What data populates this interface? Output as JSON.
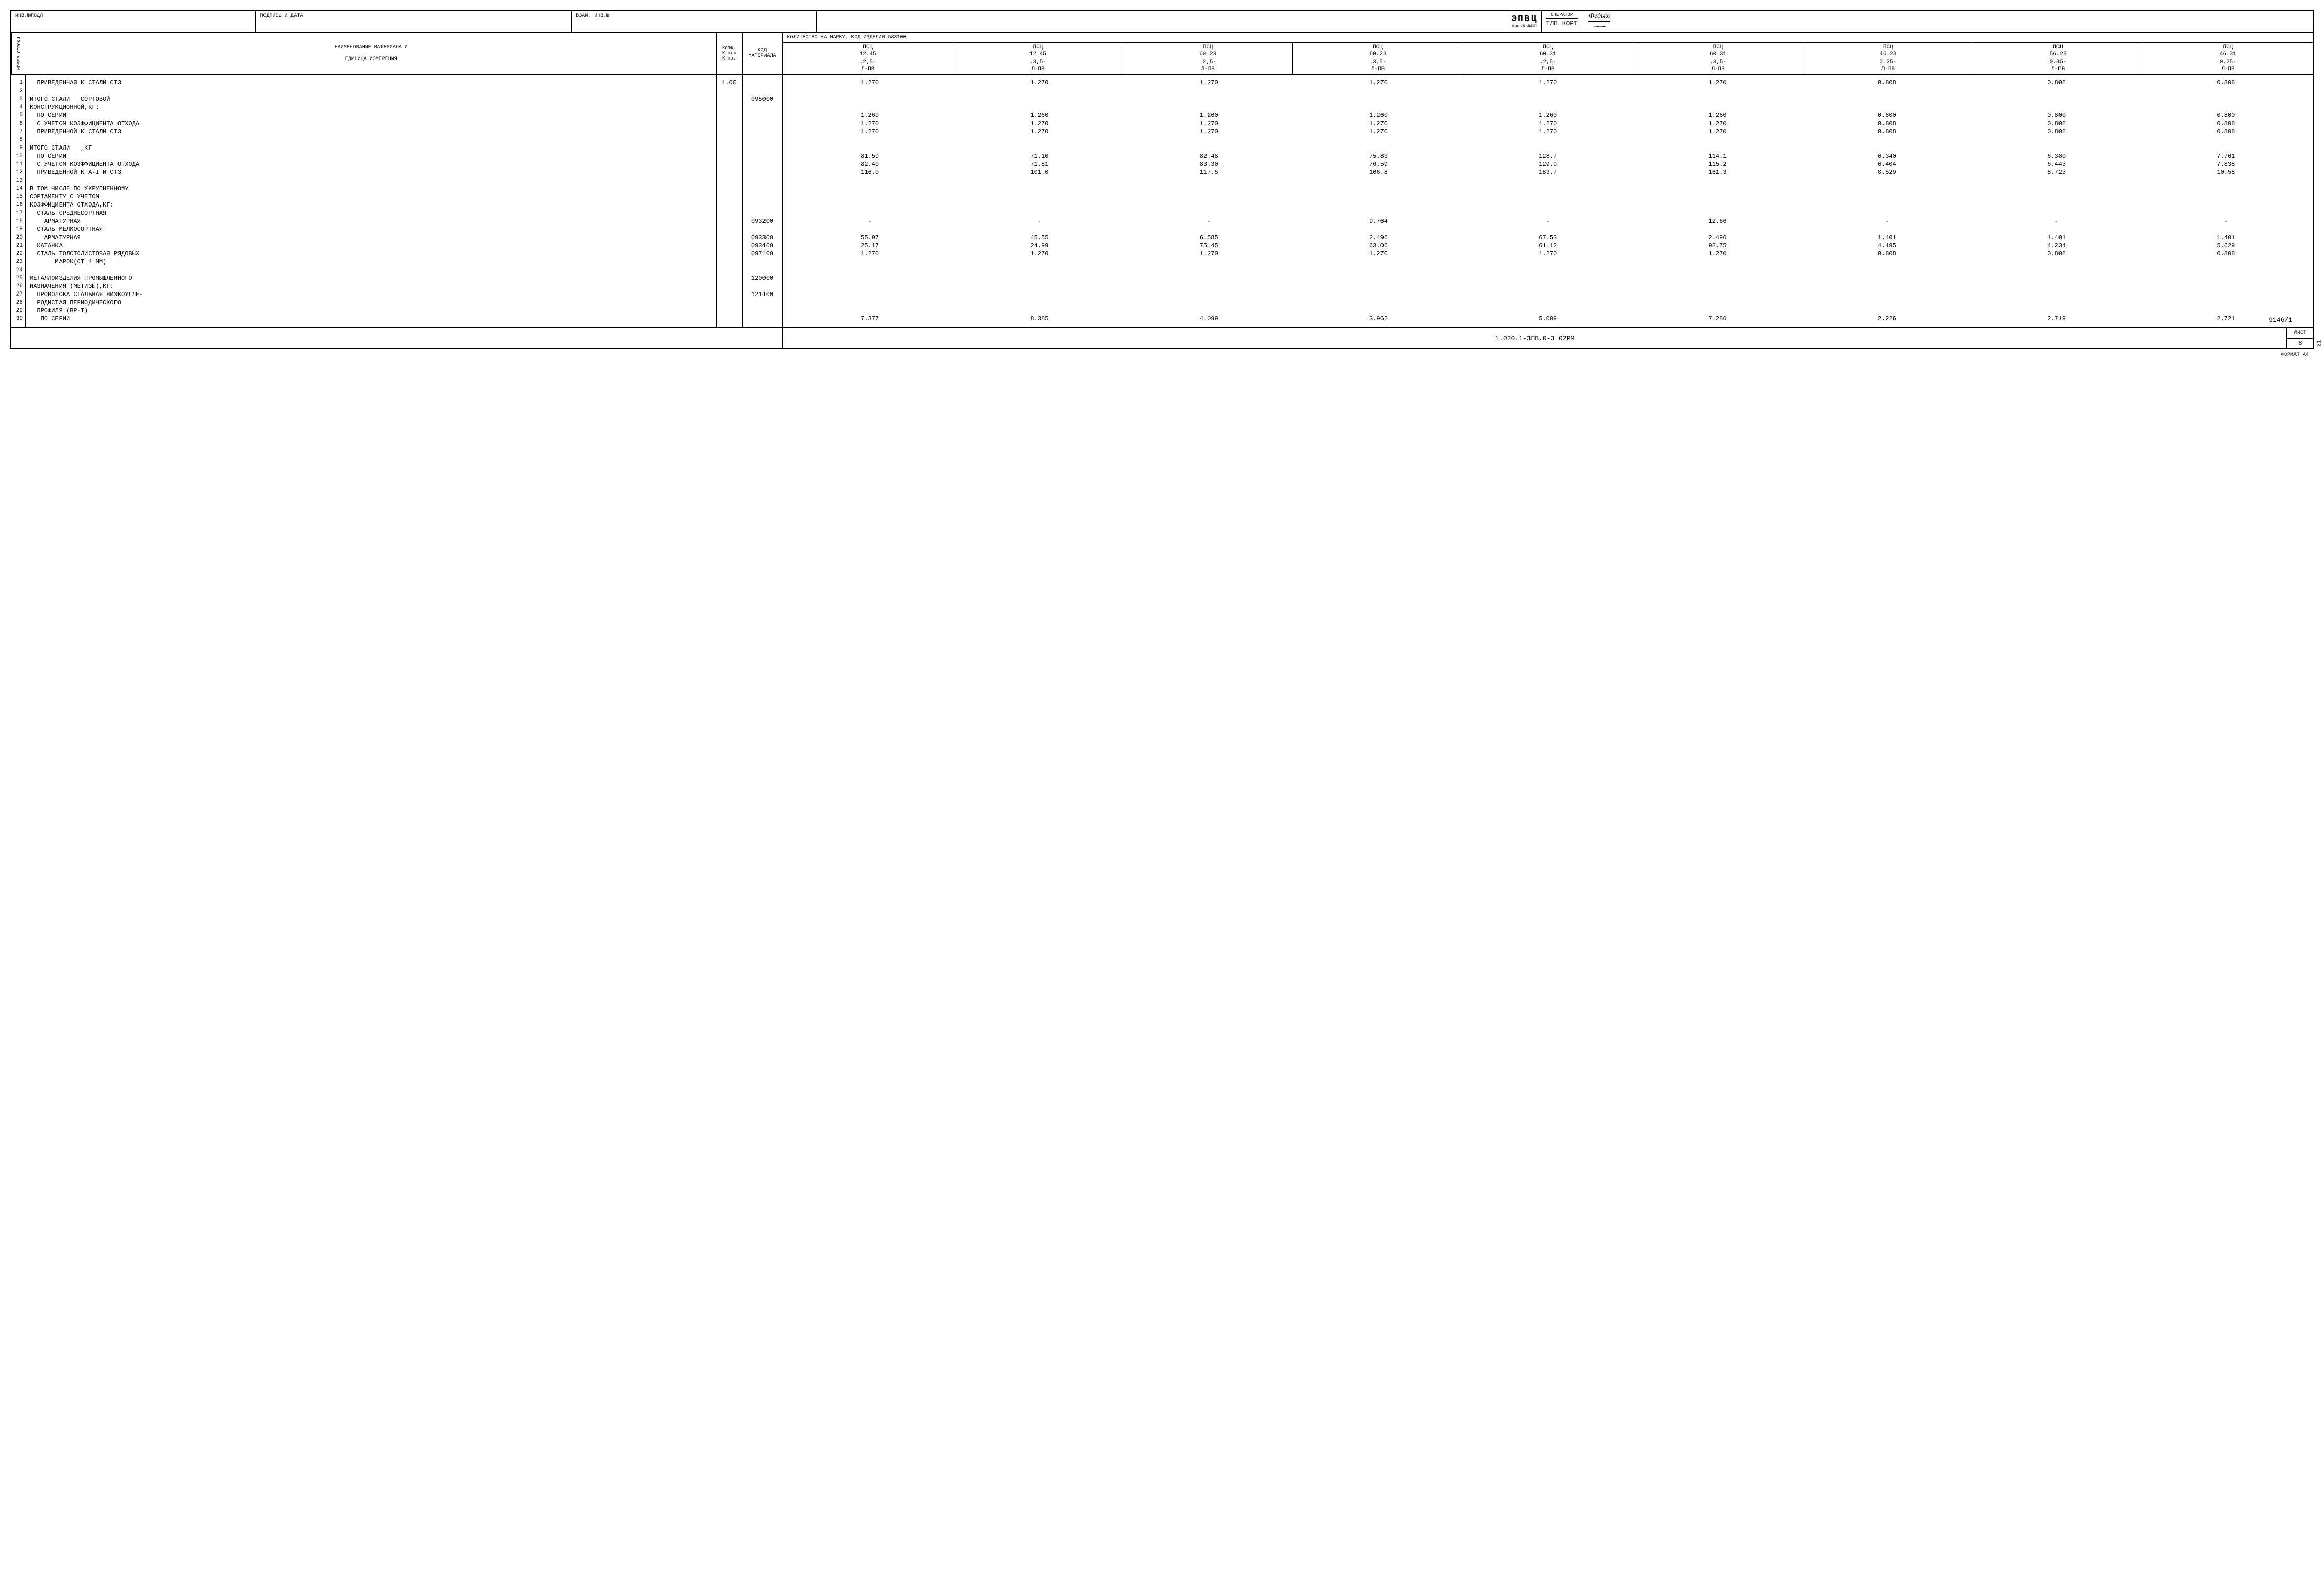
{
  "topBoxes": {
    "b1": "ИНВ.№ПОДЛ",
    "b2": "ПОДПИСЬ И ДАТА",
    "b3": "ВЗАМ. ИНВ.№"
  },
  "epvc": {
    "main": "ЭПВЦ",
    "sub": "КиевЗНИИЭП"
  },
  "operator": {
    "label": "ОПЕРАТОР",
    "value": "ТЛП КОРТ"
  },
  "signature": {
    "name": "Федько",
    "scribble": "⁓⁓"
  },
  "headers": {
    "rowNum": "НОМЕР СТРОКИ",
    "name1": "НАИМЕНОВАНИЕ  МАТЕРИАЛА  И",
    "name2": "ЕДИНИЦА ИЗМЕРЕНИЯ",
    "koef1": "КОЭФ.",
    "koef2": "К отх",
    "koef3": "К пр.",
    "kod": "КОД МАТЕРИАЛА",
    "dataTitle": "КОЛИЧЕСТВО НА МАРКУ, КОД ИЗДЕЛИЯ        583100"
  },
  "dataCols": [
    [
      "ПСЦ",
      "12.45",
      ".2,5-",
      "Л-ПВ"
    ],
    [
      "ПСЦ",
      "12.45",
      ".3,5-",
      "Л-ПВ"
    ],
    [
      "ПСЦ",
      "60.23",
      ".2,5-",
      "Л-ПВ"
    ],
    [
      "ПСЦ",
      "60.23",
      ".3,5-",
      "Л-ПВ"
    ],
    [
      "ПСЦ",
      "60.31",
      ".2,5-",
      "Л-ПВ"
    ],
    [
      "ПСЦ",
      "60.31",
      ".3,5-",
      "Л-ПВ"
    ],
    [
      "ПСЦ",
      "46.23",
      "0.25-",
      "Л-ПВ"
    ],
    [
      "ПСЦ",
      "56.23",
      "0.35-",
      "Л-ПВ"
    ],
    [
      "ПСЦ",
      "46.31",
      "0.25-",
      "Л-ПВ"
    ]
  ],
  "rows": [
    {
      "n": "1",
      "name": "  ПРИВЕДЕННАЯ К СТАЛИ СТ3",
      "koef": "1.00",
      "kod": "",
      "d": [
        "1.270",
        "1.270",
        "1.270",
        "1.270",
        "1.270",
        "1.270",
        "0.808",
        "0.808",
        "0.808"
      ]
    },
    {
      "n": "2",
      "name": "",
      "koef": "",
      "kod": "",
      "d": [
        "",
        "",
        "",
        "",
        "",
        "",
        "",
        "",
        ""
      ]
    },
    {
      "n": "3",
      "name": "ИТОГО СТАЛИ   СОРТОВОЙ",
      "koef": "",
      "kod": "095000",
      "d": [
        "",
        "",
        "",
        "",
        "",
        "",
        "",
        "",
        ""
      ]
    },
    {
      "n": "4",
      "name": "КОНСТРУКЦИОННОЙ,КГ:",
      "koef": "",
      "kod": "",
      "d": [
        "",
        "",
        "",
        "",
        "",
        "",
        "",
        "",
        ""
      ]
    },
    {
      "n": "5",
      "name": "  ПО СЕРИИ",
      "koef": "",
      "kod": "",
      "d": [
        "1.260",
        "1.260",
        "1.260",
        "1.260",
        "1.260",
        "1.260",
        "0.800",
        "0.800",
        "0.800"
      ]
    },
    {
      "n": "6",
      "name": "  С УЧЕТОМ КОЭФФИЦИЕНТА ОТХОДА",
      "koef": "",
      "kod": "",
      "d": [
        "1.270",
        "1.270",
        "1.270",
        "1.270",
        "1.270",
        "1.270",
        "0.808",
        "0.808",
        "0.808"
      ]
    },
    {
      "n": "7",
      "name": "  ПРИВЕДЕННОЙ К СТАЛИ СТ3",
      "koef": "",
      "kod": "",
      "d": [
        "1.270",
        "1.270",
        "1.270",
        "1.270",
        "1.270",
        "1.270",
        "0.808",
        "0.808",
        "0.808"
      ]
    },
    {
      "n": "8",
      "name": "",
      "koef": "",
      "kod": "",
      "d": [
        "",
        "",
        "",
        "",
        "",
        "",
        "",
        "",
        ""
      ]
    },
    {
      "n": "9",
      "name": "ИТОГО СТАЛИ   ,КГ",
      "koef": "",
      "kod": "",
      "d": [
        "",
        "",
        "",
        "",
        "",
        "",
        "",
        "",
        ""
      ]
    },
    {
      "n": "10",
      "name": "  ПО СЕРИИ",
      "koef": "",
      "kod": "",
      "d": [
        "81.59",
        "71.10",
        "82.48",
        "75.83",
        "128.7",
        "114.1",
        "6.340",
        "6.380",
        "7.761"
      ]
    },
    {
      "n": "11",
      "name": "  С УЧЕТОМ КОЭФФИЦИЕНТА ОТХОДА",
      "koef": "",
      "kod": "",
      "d": [
        "82.40",
        "71.81",
        "83.30",
        "76.59",
        "129.9",
        "115.2",
        "6.404",
        "6.443",
        "7.838"
      ]
    },
    {
      "n": "12",
      "name": "  ПРИВЕДЕННОЙ К А-I И СТ3",
      "koef": "",
      "kod": "",
      "d": [
        "116.0",
        "101.0",
        "117.5",
        "106.8",
        "183.7",
        "161.3",
        "8.529",
        "8.723",
        "10.58"
      ]
    },
    {
      "n": "13",
      "name": "",
      "koef": "",
      "kod": "",
      "d": [
        "",
        "",
        "",
        "",
        "",
        "",
        "",
        "",
        ""
      ]
    },
    {
      "n": "14",
      "name": "В ТОМ ЧИСЛЕ ПО УКРУПНЕННОМУ",
      "koef": "",
      "kod": "",
      "d": [
        "",
        "",
        "",
        "",
        "",
        "",
        "",
        "",
        ""
      ]
    },
    {
      "n": "15",
      "name": "СОРТАМЕНТУ С УЧЕТОМ",
      "koef": "",
      "kod": "",
      "d": [
        "",
        "",
        "",
        "",
        "",
        "",
        "",
        "",
        ""
      ]
    },
    {
      "n": "16",
      "name": "КОЭФФИЦИЕНТА ОТХОДА,КГ:",
      "koef": "",
      "kod": "",
      "d": [
        "",
        "",
        "",
        "",
        "",
        "",
        "",
        "",
        ""
      ]
    },
    {
      "n": "17",
      "name": "  СТАЛЬ СРЕДНЕСОРТНАЯ",
      "koef": "",
      "kod": "",
      "d": [
        "",
        "",
        "",
        "",
        "",
        "",
        "",
        "",
        ""
      ]
    },
    {
      "n": "18",
      "name": "    АРМАТУРНАЯ",
      "koef": "",
      "kod": "093200",
      "d": [
        "-",
        "-",
        "-",
        "9.764",
        "-",
        "12.66",
        "-",
        "-",
        "-"
      ]
    },
    {
      "n": "19",
      "name": "  СТАЛЬ МЕЛКОСОРТНАЯ",
      "koef": "",
      "kod": "",
      "d": [
        "",
        "",
        "",
        "",
        "",
        "",
        "",
        "",
        ""
      ]
    },
    {
      "n": "20",
      "name": "    АРМАТУРНАЯ",
      "koef": "",
      "kod": "093300",
      "d": [
        "55.97",
        "45.55",
        "6.585",
        "2.496",
        "67.53",
        "2.496",
        "1.401",
        "1.401",
        "1.401"
      ]
    },
    {
      "n": "21",
      "name": "  КАТАНКА",
      "koef": "",
      "kod": "093400",
      "d": [
        "25.17",
        "24.99",
        "75.45",
        "63.06",
        "61.12",
        "98.75",
        "4.195",
        "4.234",
        "5.629"
      ]
    },
    {
      "n": "22",
      "name": "  СТАЛЬ ТОЛСТОЛИСТОВАЯ РЯДОВЫХ",
      "koef": "",
      "kod": "097100",
      "d": [
        "1.270",
        "1.270",
        "1.270",
        "1.270",
        "1.270",
        "1.270",
        "0.808",
        "0.808",
        "0.808"
      ]
    },
    {
      "n": "23",
      "name": "       МАРОК(ОТ 4 ММ)",
      "koef": "",
      "kod": "",
      "d": [
        "",
        "",
        "",
        "",
        "",
        "",
        "",
        "",
        ""
      ]
    },
    {
      "n": "24",
      "name": "",
      "koef": "",
      "kod": "",
      "d": [
        "",
        "",
        "",
        "",
        "",
        "",
        "",
        "",
        ""
      ]
    },
    {
      "n": "25",
      "name": "МЕТАЛЛОИЗДЕЛИЯ ПРОМЫШЛЕННОГО",
      "koef": "",
      "kod": "120000",
      "d": [
        "",
        "",
        "",
        "",
        "",
        "",
        "",
        "",
        ""
      ]
    },
    {
      "n": "26",
      "name": "НАЗНАЧЕНИЯ (МЕТИЗЫ),КГ:",
      "koef": "",
      "kod": "",
      "d": [
        "",
        "",
        "",
        "",
        "",
        "",
        "",
        "",
        ""
      ]
    },
    {
      "n": "27",
      "name": "  ПРОВОЛОКА СТАЛЬНАЯ НИЗКОУГЛЕ-",
      "koef": "",
      "kod": "121400",
      "d": [
        "",
        "",
        "",
        "",
        "",
        "",
        "",
        "",
        ""
      ]
    },
    {
      "n": "28",
      "name": "  РОДИСТАЯ ПЕРИОДИЧЕСКОГО",
      "koef": "",
      "kod": "",
      "d": [
        "",
        "",
        "",
        "",
        "",
        "",
        "",
        "",
        ""
      ]
    },
    {
      "n": "29",
      "name": "  ПРОФИЛЯ (ВР-I)",
      "koef": "",
      "kod": "",
      "d": [
        "",
        "",
        "",
        "",
        "",
        "",
        "",
        "",
        ""
      ]
    },
    {
      "n": "30",
      "name": "   ПО СЕРИИ",
      "koef": "",
      "kod": "",
      "d": [
        "7.377",
        "8.385",
        "4.099",
        "3.962",
        "5.009",
        "7.286",
        "2.226",
        "2.719",
        "2.721"
      ]
    }
  ],
  "refNum": "9146/1",
  "footer": {
    "doc": "1.020.1-3ПВ.0-3 02РМ",
    "listLabel": "ЛИСТ",
    "listNum": "8"
  },
  "format": "ФОРМАТ А4",
  "sideNum": "21"
}
